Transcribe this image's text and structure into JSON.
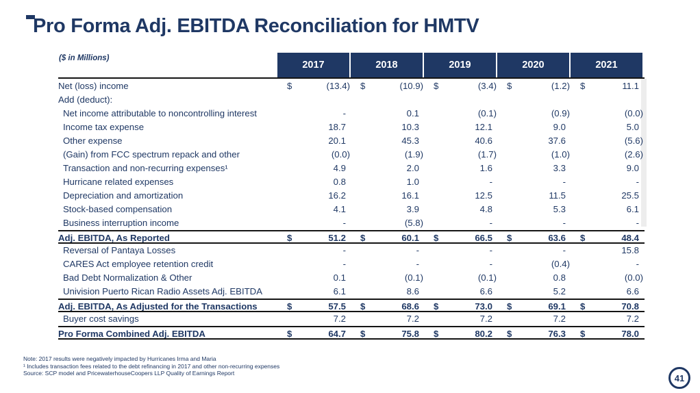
{
  "slide": {
    "title": "Pro Forma Adj. EBITDA Reconciliation for HMTV",
    "units_label": "($ in Millions)",
    "page_number": "41"
  },
  "colors": {
    "accent_navy": "#1f3864",
    "header_background": "#1f3864",
    "header_text": "#ffffff",
    "rule_line": "#141414"
  },
  "table": {
    "columns": [
      "2017",
      "2018",
      "2019",
      "2020",
      "2021"
    ],
    "rows": [
      {
        "label": "Net (loss) income",
        "indent": 0,
        "bold": false,
        "dollar": true,
        "border_top": false,
        "border_bottom": false,
        "values": [
          "(13.4)",
          "(10.9)",
          "(3.4)",
          "(1.2)",
          "11.1"
        ]
      },
      {
        "label": "Add (deduct):",
        "indent": 0,
        "bold": false,
        "dollar": false,
        "border_top": false,
        "border_bottom": false,
        "values": [
          "",
          "",
          "",
          "",
          ""
        ]
      },
      {
        "label": "Net income attributable to noncontrolling interest",
        "indent": 1,
        "bold": false,
        "dollar": false,
        "border_top": false,
        "border_bottom": false,
        "values": [
          "-",
          "0.1",
          "(0.1)",
          "(0.9)",
          "(0.0)"
        ]
      },
      {
        "label": "Income tax expense",
        "indent": 1,
        "bold": false,
        "dollar": false,
        "border_top": false,
        "border_bottom": false,
        "values": [
          "18.7",
          "10.3",
          "12.1",
          "9.0",
          "5.0"
        ]
      },
      {
        "label": "Other expense",
        "indent": 1,
        "bold": false,
        "dollar": false,
        "border_top": false,
        "border_bottom": false,
        "values": [
          "20.1",
          "45.3",
          "40.6",
          "37.6",
          "(5.6)"
        ]
      },
      {
        "label": "(Gain) from FCC spectrum repack and other",
        "indent": 1,
        "bold": false,
        "dollar": false,
        "border_top": false,
        "border_bottom": false,
        "values": [
          "(0.0)",
          "(1.9)",
          "(1.7)",
          "(1.0)",
          "(2.6)"
        ]
      },
      {
        "label": "Transaction and non-recurring expenses¹",
        "indent": 1,
        "bold": false,
        "dollar": false,
        "border_top": false,
        "border_bottom": false,
        "values": [
          "4.9",
          "2.0",
          "1.6",
          "3.3",
          "9.0"
        ]
      },
      {
        "label": "Hurricane related expenses",
        "indent": 1,
        "bold": false,
        "dollar": false,
        "border_top": false,
        "border_bottom": false,
        "values": [
          "0.8",
          "1.0",
          "-",
          "-",
          "-"
        ]
      },
      {
        "label": "Depreciation and amortization",
        "indent": 1,
        "bold": false,
        "dollar": false,
        "border_top": false,
        "border_bottom": false,
        "values": [
          "16.2",
          "16.1",
          "12.5",
          "11.5",
          "25.5"
        ]
      },
      {
        "label": "Stock-based compensation",
        "indent": 1,
        "bold": false,
        "dollar": false,
        "border_top": false,
        "border_bottom": false,
        "values": [
          "4.1",
          "3.9",
          "4.8",
          "5.3",
          "6.1"
        ]
      },
      {
        "label": "Business interruption income",
        "indent": 1,
        "bold": false,
        "dollar": false,
        "border_top": false,
        "border_bottom": false,
        "values": [
          "-",
          "(5.8)",
          "-",
          "-",
          "-"
        ]
      },
      {
        "label": "Adj. EBITDA, As Reported",
        "indent": 0,
        "bold": true,
        "dollar": true,
        "border_top": true,
        "border_bottom": true,
        "values": [
          "51.2",
          "60.1",
          "66.5",
          "63.6",
          "48.4"
        ]
      },
      {
        "label": "Reversal of Pantaya Losses",
        "indent": 1,
        "bold": false,
        "dollar": false,
        "border_top": false,
        "border_bottom": false,
        "values": [
          "-",
          "-",
          "-",
          "-",
          "15.8"
        ]
      },
      {
        "label": "CARES Act employee retention credit",
        "indent": 1,
        "bold": false,
        "dollar": false,
        "border_top": false,
        "border_bottom": false,
        "values": [
          "-",
          "-",
          "-",
          "(0.4)",
          "-"
        ]
      },
      {
        "label": "Bad Debt Normalization & Other",
        "indent": 1,
        "bold": false,
        "dollar": false,
        "border_top": false,
        "border_bottom": false,
        "values": [
          "0.1",
          "(0.1)",
          "(0.1)",
          "0.8",
          "(0.0)"
        ]
      },
      {
        "label": "Univision Puerto Rican Radio Assets Adj. EBITDA",
        "indent": 1,
        "bold": false,
        "dollar": false,
        "border_top": false,
        "border_bottom": false,
        "values": [
          "6.1",
          "8.6",
          "6.6",
          "5.2",
          "6.6"
        ]
      },
      {
        "label": "Adj. EBITDA, As Adjusted for the Transactions",
        "indent": 0,
        "bold": true,
        "dollar": true,
        "border_top": true,
        "border_bottom": true,
        "values": [
          "57.5",
          "68.6",
          "73.0",
          "69.1",
          "70.8"
        ]
      },
      {
        "label": "Buyer cost savings",
        "indent": 1,
        "bold": false,
        "dollar": false,
        "border_top": false,
        "border_bottom": false,
        "values": [
          "7.2",
          "7.2",
          "7.2",
          "7.2",
          "7.2"
        ]
      },
      {
        "label": "Pro Forma Combined Adj. EBITDA",
        "indent": 0,
        "bold": true,
        "dollar": true,
        "border_top": true,
        "border_bottom": true,
        "values": [
          "64.7",
          "75.8",
          "80.2",
          "76.3",
          "78.0"
        ]
      }
    ]
  },
  "footnotes": [
    "Note: 2017 results were negatively impacted by Hurricanes Irma and Maria",
    "¹ Includes transaction fees related to the debt refinancing in 2017 and other non-recurring expenses",
    "Source: SCP model and PricewaterhouseCoopers LLP Quality of Earnings Report"
  ]
}
